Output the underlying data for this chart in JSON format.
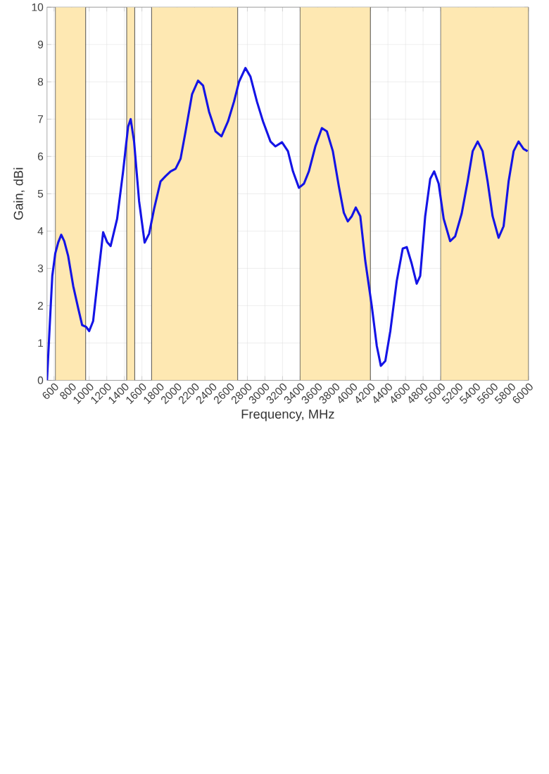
{
  "chart_data": {
    "type": "line",
    "xlabel": "Frequency, MHz",
    "ylabel": "Gain, dBi",
    "x": [
      520,
      545,
      580,
      614,
      648,
      682,
      716,
      761,
      818,
      875,
      920,
      966,
      1000,
      1045,
      1102,
      1159,
      1205,
      1244,
      1318,
      1386,
      1443,
      1472,
      1511,
      1568,
      1631,
      1682,
      1739,
      1812,
      1869,
      1926,
      1983,
      2040,
      2097,
      2171,
      2239,
      2296,
      2364,
      2438,
      2506,
      2580,
      2648,
      2705,
      2778,
      2835,
      2909,
      2978,
      3063,
      3120,
      3194,
      3262,
      3319,
      3387,
      3444,
      3500,
      3574,
      3648,
      3705,
      3773,
      3841,
      3898,
      3943,
      3989,
      4034,
      4085,
      4142,
      4216,
      4273,
      4319,
      4370,
      4427,
      4500,
      4568,
      4614,
      4670,
      4727,
      4767,
      4824,
      4881,
      4926,
      4977,
      5034,
      5108,
      5165,
      5239,
      5307,
      5364,
      5421,
      5477,
      5534,
      5591,
      5659,
      5716,
      5773,
      5830,
      5886,
      5943,
      5989
    ],
    "series": [
      {
        "color": "#1414e6",
        "values": [
          0.0,
          1.19,
          2.8,
          3.4,
          3.7,
          3.9,
          3.73,
          3.33,
          2.53,
          1.93,
          1.48,
          1.43,
          1.32,
          1.59,
          2.8,
          3.97,
          3.7,
          3.6,
          4.33,
          5.6,
          6.8,
          7.0,
          6.4,
          4.8,
          3.69,
          3.93,
          4.6,
          5.33,
          5.47,
          5.6,
          5.67,
          5.94,
          6.67,
          7.67,
          8.03,
          7.9,
          7.2,
          6.67,
          6.54,
          6.94,
          7.47,
          8.0,
          8.37,
          8.14,
          7.47,
          6.94,
          6.4,
          6.27,
          6.38,
          6.14,
          5.6,
          5.16,
          5.27,
          5.6,
          6.27,
          6.76,
          6.67,
          6.14,
          5.2,
          4.49,
          4.26,
          4.4,
          4.63,
          4.4,
          3.2,
          1.99,
          0.92,
          0.39,
          0.52,
          1.32,
          2.66,
          3.53,
          3.57,
          3.13,
          2.59,
          2.8,
          4.4,
          5.4,
          5.6,
          5.27,
          4.33,
          3.73,
          3.86,
          4.47,
          5.33,
          6.14,
          6.4,
          6.14,
          5.33,
          4.4,
          3.82,
          4.13,
          5.33,
          6.14,
          6.4,
          6.2,
          6.14
        ]
      }
    ],
    "xlim": [
      520,
      6000
    ],
    "ylim": [
      0,
      10
    ],
    "xticks": [
      600,
      800,
      1000,
      1200,
      1400,
      1600,
      1800,
      2000,
      2200,
      2400,
      2600,
      2800,
      3000,
      3200,
      3400,
      3600,
      3800,
      4000,
      4200,
      4400,
      4600,
      4800,
      5000,
      5200,
      5400,
      5600,
      5800,
      6000
    ],
    "yticks": [
      0,
      1,
      2,
      3,
      4,
      5,
      6,
      7,
      8,
      9,
      10
    ],
    "grid": true,
    "line_style": "solid",
    "bands": [
      {
        "axis": "x",
        "from": 617,
        "to": 960,
        "color": "#fee8b2"
      },
      {
        "axis": "x",
        "from": 1427,
        "to": 1518,
        "color": "#fee8b2"
      },
      {
        "axis": "x",
        "from": 1710,
        "to": 2690,
        "color": "#fee8b2"
      },
      {
        "axis": "x",
        "from": 3400,
        "to": 4200,
        "color": "#fee8b2"
      },
      {
        "axis": "x",
        "from": 5000,
        "to": 6000,
        "color": "#fee8b2"
      }
    ]
  }
}
